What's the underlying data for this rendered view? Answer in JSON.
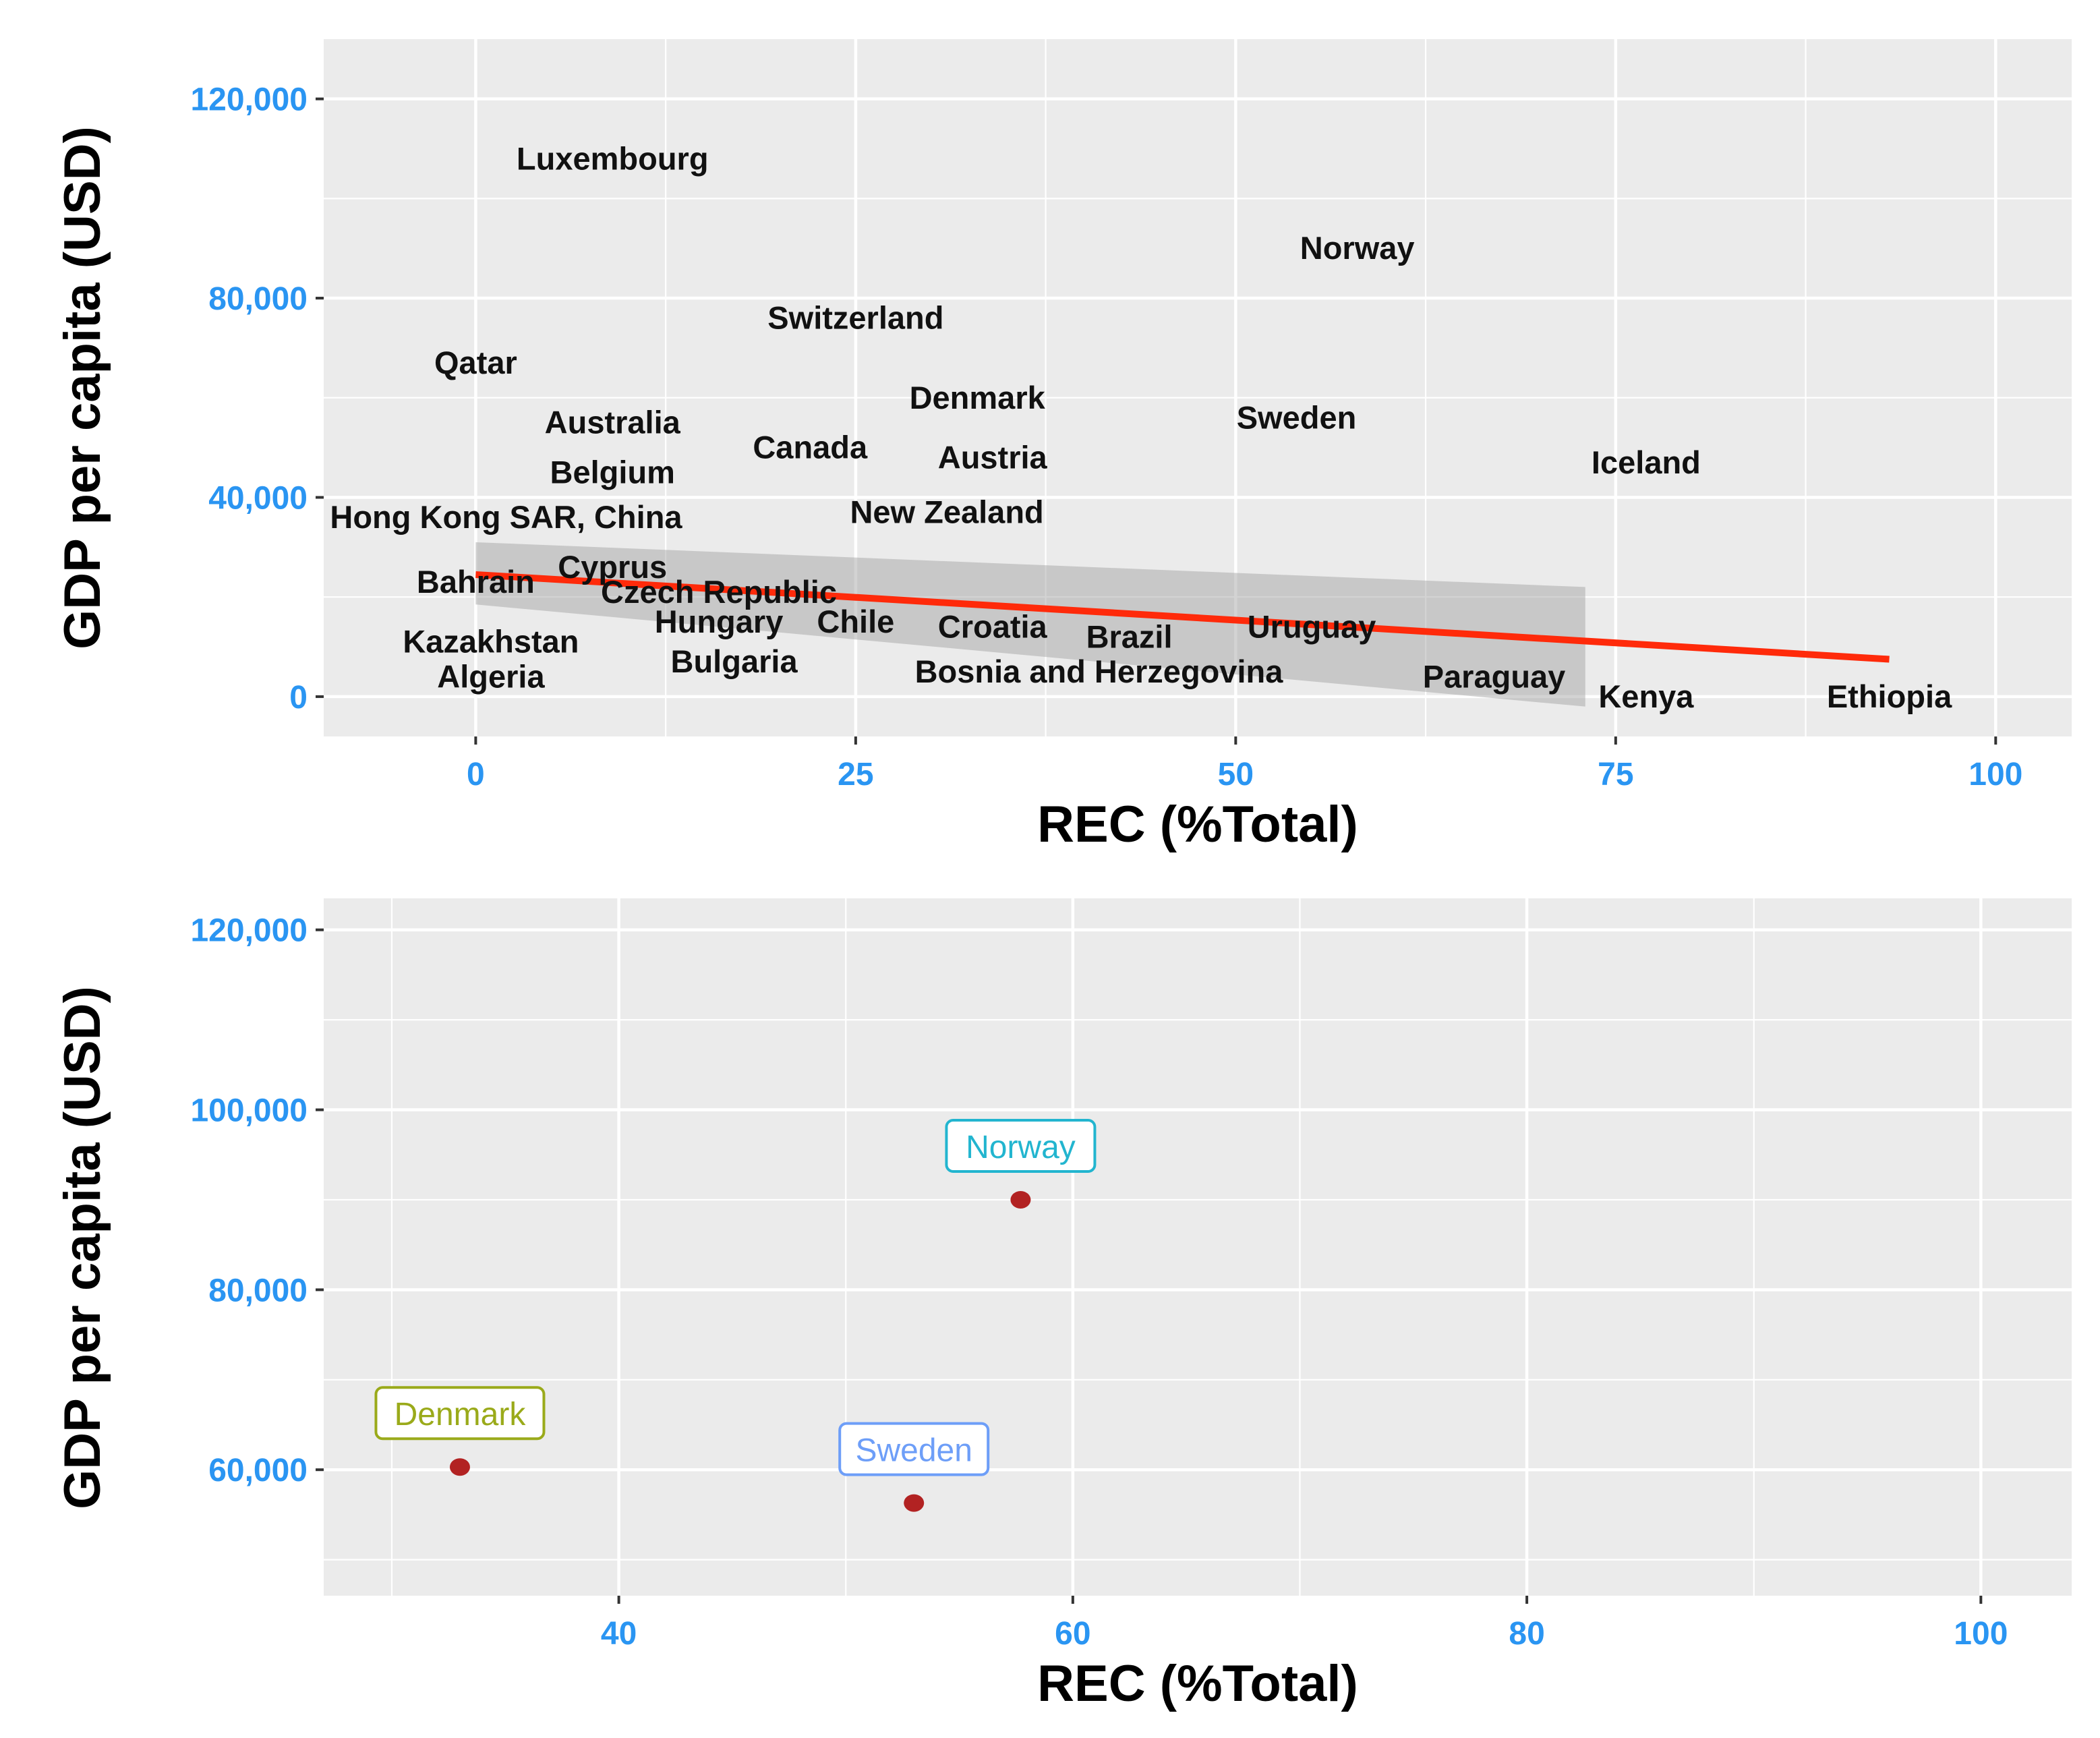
{
  "chart_data": [
    {
      "type": "scatter",
      "title": "",
      "xlabel": "REC (%Total)",
      "ylabel": "GDP per capita (USD)",
      "xlim": [
        -10,
        105
      ],
      "ylim": [
        -8000,
        132000
      ],
      "x_ticks": [
        0,
        25,
        50,
        75,
        100
      ],
      "y_ticks": [
        0,
        40000,
        80000,
        120000
      ],
      "x_tick_labels": [
        "0",
        "25",
        "50",
        "75",
        "100"
      ],
      "y_tick_labels": [
        "0",
        "40,000",
        "80,000",
        "120,000"
      ],
      "grid": true,
      "points": [
        {
          "label": "Luxembourg",
          "x": 9,
          "y": 108000
        },
        {
          "label": "Norway",
          "x": 58,
          "y": 90000
        },
        {
          "label": "Switzerland",
          "x": 25,
          "y": 76000
        },
        {
          "label": "Qatar",
          "x": 0,
          "y": 67000
        },
        {
          "label": "Denmark",
          "x": 33,
          "y": 60000
        },
        {
          "label": "Sweden",
          "x": 54,
          "y": 56000
        },
        {
          "label": "Australia",
          "x": 9,
          "y": 55000
        },
        {
          "label": "Canada",
          "x": 22,
          "y": 50000
        },
        {
          "label": "Austria",
          "x": 34,
          "y": 48000
        },
        {
          "label": "Iceland",
          "x": 77,
          "y": 47000
        },
        {
          "label": "Belgium",
          "x": 9,
          "y": 45000
        },
        {
          "label": "Hong Kong SAR, China",
          "x": 2,
          "y": 36000
        },
        {
          "label": "New Zealand",
          "x": 31,
          "y": 37000
        },
        {
          "label": "Cyprus",
          "x": 9,
          "y": 26000
        },
        {
          "label": "Bahrain",
          "x": 0,
          "y": 23000
        },
        {
          "label": "Czech Republic",
          "x": 16,
          "y": 21000
        },
        {
          "label": "Hungary",
          "x": 16,
          "y": 15000
        },
        {
          "label": "Chile",
          "x": 25,
          "y": 15000
        },
        {
          "label": "Croatia",
          "x": 34,
          "y": 14000
        },
        {
          "label": "Brazil",
          "x": 43,
          "y": 12000
        },
        {
          "label": "Uruguay",
          "x": 55,
          "y": 14000
        },
        {
          "label": "Kazakhstan",
          "x": 1,
          "y": 11000
        },
        {
          "label": "Bulgaria",
          "x": 17,
          "y": 7000
        },
        {
          "label": "Bosnia and Herzegovina",
          "x": 41,
          "y": 5000
        },
        {
          "label": "Algeria",
          "x": 1,
          "y": 4000
        },
        {
          "label": "Paraguay",
          "x": 67,
          "y": 4000
        },
        {
          "label": "Kenya",
          "x": 77,
          "y": 0
        },
        {
          "label": "Ethiopia",
          "x": 93,
          "y": 0
        }
      ],
      "trend": {
        "x": [
          0,
          93
        ],
        "y": [
          24500,
          7500
        ]
      },
      "confidence_band": {
        "x": [
          0,
          73
        ],
        "upper": [
          31000,
          22000
        ],
        "lower": [
          18500,
          -2000
        ]
      }
    },
    {
      "type": "scatter",
      "title": "",
      "xlabel": "REC (%Total)",
      "ylabel": "GDP per capita (USD)",
      "xlim": [
        27,
        104
      ],
      "ylim": [
        46000,
        123500
      ],
      "x_ticks": [
        40,
        60,
        80,
        100
      ],
      "y_ticks": [
        60000,
        80000,
        100000,
        120000
      ],
      "x_tick_labels": [
        "40",
        "60",
        "80",
        "100"
      ],
      "y_tick_labels": [
        "60,000",
        "80,000",
        "100,000",
        "120,000"
      ],
      "grid": true,
      "points": [
        {
          "label": "Denmark",
          "x": 33,
          "y": 60300,
          "color": "#9aaa1a"
        },
        {
          "label": "Sweden",
          "x": 53,
          "y": 56300,
          "color": "#6d9ef8"
        },
        {
          "label": "Norway",
          "x": 57.7,
          "y": 90000,
          "color": "#22b5cf"
        }
      ]
    }
  ]
}
